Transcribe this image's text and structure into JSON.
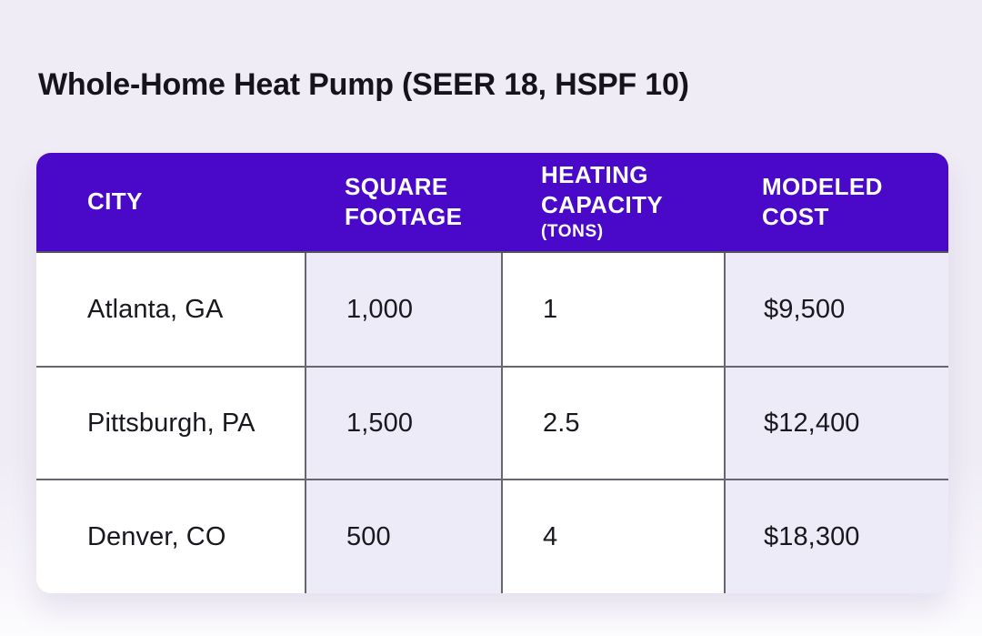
{
  "page": {
    "background": "#EFECF5",
    "accent": "#4A08C8",
    "stripe_color": "#EEEBF8",
    "grid_color": "#67656E"
  },
  "title": "Whole-Home Heat Pump (SEER 18, HSPF 10)",
  "table": {
    "columns": [
      {
        "label": "CITY",
        "sublabel": ""
      },
      {
        "label": "SQUARE FOOTAGE",
        "sublabel": ""
      },
      {
        "label": "HEATING CAPACITY",
        "sublabel": "(TONS)"
      },
      {
        "label": "MODELED COST",
        "sublabel": ""
      }
    ],
    "rows": [
      [
        "Atlanta, GA",
        "1,000",
        "1",
        "$9,500"
      ],
      [
        "Pittsburgh, PA",
        "1,500",
        "2.5",
        "$12,400"
      ],
      [
        "Denver, CO",
        "500",
        "4",
        "$18,300"
      ]
    ]
  },
  "chart_data": {
    "type": "table",
    "title": "Whole-Home Heat Pump (SEER 18, HSPF 10)",
    "columns": [
      "CITY",
      "SQUARE FOOTAGE",
      "HEATING CAPACITY (TONS)",
      "MODELED COST"
    ],
    "rows": [
      [
        "Atlanta, GA",
        1000,
        1,
        9500
      ],
      [
        "Pittsburgh, PA",
        1500,
        2.5,
        12400
      ],
      [
        "Denver, CO",
        500,
        4,
        18300
      ]
    ],
    "units": {
      "SQUARE FOOTAGE": "sq ft",
      "HEATING CAPACITY (TONS)": "tons",
      "MODELED COST": "USD"
    }
  }
}
